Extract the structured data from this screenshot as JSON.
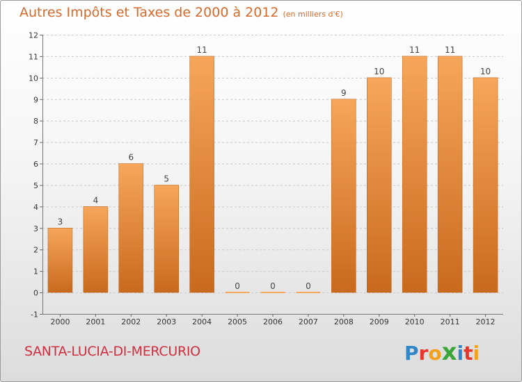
{
  "chart_data": {
    "type": "bar",
    "title": "Autres Impôts et Taxes de 2000 à 2012",
    "unit": "(en milliers d'€)",
    "categories": [
      "2000",
      "2001",
      "2002",
      "2003",
      "2004",
      "2005",
      "2006",
      "2007",
      "2008",
      "2009",
      "2010",
      "2011",
      "2012"
    ],
    "values": [
      3,
      4,
      6,
      5,
      11,
      0,
      0,
      0,
      9,
      10,
      11,
      11,
      10
    ],
    "data_labels": [
      "3",
      "4",
      "6",
      "5",
      "11",
      "0",
      "0",
      "0",
      "9",
      "10",
      "11",
      "11",
      "10"
    ],
    "ylim": [
      -1,
      12
    ],
    "yticks": [
      "-1",
      "0",
      "1",
      "2",
      "3",
      "4",
      "5",
      "6",
      "7",
      "8",
      "9",
      "10",
      "11",
      "12"
    ],
    "grid": "horizontal-dashed",
    "bar_color_light": "#f6a65a",
    "bar_color_dark": "#c96a1d"
  },
  "footer": {
    "commune": "SANTA-LUCIA-DI-MERCURIO",
    "logo_letters": [
      "P",
      "r",
      "o",
      "x",
      "i",
      "t",
      "i"
    ],
    "logo_colors": [
      "#2f86c9",
      "#e8352b",
      "#f3a11a",
      "#3aa53a",
      "#2f86c9",
      "#e8352b",
      "#f3a11a"
    ]
  }
}
